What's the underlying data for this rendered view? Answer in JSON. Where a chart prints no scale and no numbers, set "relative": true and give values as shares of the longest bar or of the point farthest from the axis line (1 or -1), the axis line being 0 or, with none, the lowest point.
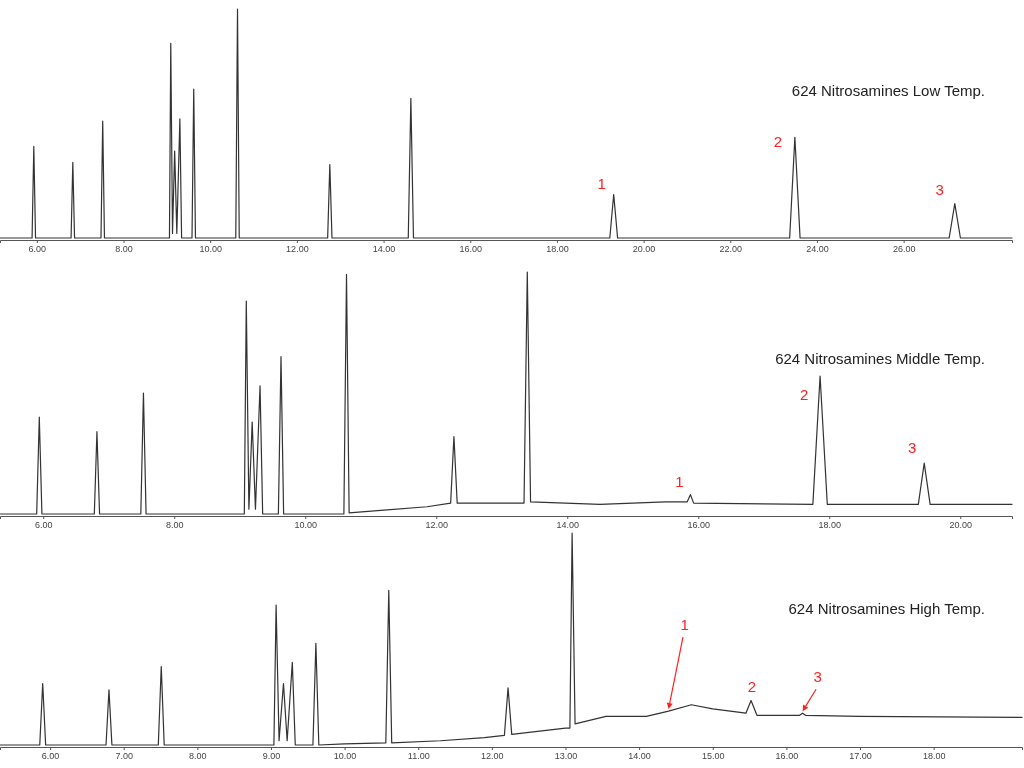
{
  "chart_data": [
    {
      "type": "line",
      "title": "624 Nitrosamines Low Temp.",
      "relative": true,
      "xlim": [
        5.15,
        28.5
      ],
      "xticks": [
        {
          "value": 6,
          "label": "6.00"
        },
        {
          "value": 8,
          "label": "8.00"
        },
        {
          "value": 10,
          "label": "10.00"
        },
        {
          "value": 12,
          "label": "12.00"
        },
        {
          "value": 14,
          "label": "14.00"
        },
        {
          "value": 16,
          "label": "16.00"
        },
        {
          "value": 18,
          "label": "18.00"
        },
        {
          "value": 20,
          "label": "20.00"
        },
        {
          "value": 22,
          "label": "22.00"
        },
        {
          "value": 24,
          "label": "24.00"
        },
        {
          "value": 26,
          "label": "26.00"
        }
      ],
      "series": [
        {
          "color": "#333333",
          "x": [
            5.15,
            5.89,
            5.93,
            5.97,
            6.79,
            6.83,
            6.87,
            7.48,
            7.52,
            7.56,
            9.06,
            9.09,
            9.13,
            9.18,
            9.23,
            9.3,
            9.34,
            9.58,
            9.62,
            9.66,
            10.59,
            10.63,
            10.67,
            12.71,
            12.76,
            12.81,
            14.57,
            14.63,
            14.69,
            19.22,
            19.31,
            19.4,
            23.37,
            23.49,
            23.61,
            27.05,
            27.18,
            27.31,
            28.5
          ],
          "values": [
            0,
            0,
            0.4,
            0,
            0,
            0.33,
            0,
            0,
            0.51,
            0,
            0,
            0.85,
            0.02,
            0.38,
            0.02,
            0.52,
            0,
            0,
            0.65,
            0,
            0,
            1,
            0,
            0,
            0.32,
            0,
            0,
            0.61,
            0,
            0,
            0.19,
            0,
            0,
            0.44,
            0,
            0,
            0.15,
            0,
            0
          ]
        }
      ],
      "annotations": [
        {
          "text": "1",
          "x": 19.31,
          "y": 0.19
        },
        {
          "text": "2",
          "x": 23.49,
          "y": 0.44
        },
        {
          "text": "3",
          "x": 27.18,
          "y": 0.15
        }
      ]
    },
    {
      "type": "line",
      "title": "624 Nitrosamines Middle Temp.",
      "relative": true,
      "xlim": [
        5.34,
        20.79
      ],
      "xticks": [
        {
          "value": 6,
          "label": "6.00"
        },
        {
          "value": 8,
          "label": "8.00"
        },
        {
          "value": 10,
          "label": "10.00"
        },
        {
          "value": 12,
          "label": "12.00"
        },
        {
          "value": 14,
          "label": "14.00"
        },
        {
          "value": 16,
          "label": "16.00"
        },
        {
          "value": 18,
          "label": "18.00"
        },
        {
          "value": 20,
          "label": "20.00"
        }
      ],
      "series": [
        {
          "color": "#333333",
          "x": [
            5.34,
            5.9,
            5.94,
            5.98,
            6.78,
            6.82,
            6.86,
            7.49,
            7.53,
            7.57,
            9.07,
            9.1,
            9.14,
            9.19,
            9.24,
            9.31,
            9.35,
            9.59,
            9.63,
            9.67,
            10.59,
            10.63,
            10.67,
            11.86,
            12.22,
            12.27,
            12.32,
            13.34,
            13.39,
            13.44,
            14.5,
            15.5,
            15.83,
            15.88,
            15.93,
            17.75,
            17.86,
            17.97,
            19.36,
            19.45,
            19.54,
            20.79
          ],
          "values": [
            0,
            0,
            0.4,
            0,
            0,
            0.34,
            0,
            0,
            0.5,
            0,
            0,
            0.88,
            0.02,
            0.38,
            0.02,
            0.53,
            0,
            0,
            0.65,
            0,
            0,
            0.99,
            0.005,
            0.03,
            0.045,
            0.32,
            0.045,
            0.045,
            1,
            0.05,
            0.04,
            0.05,
            0.05,
            0.08,
            0.045,
            0.04,
            0.57,
            0.04,
            0.04,
            0.21,
            0.04,
            0.04
          ]
        }
      ],
      "annotations": [
        {
          "text": "1",
          "x": 15.88,
          "y": 0.08
        },
        {
          "text": "2",
          "x": 17.86,
          "y": 0.57
        },
        {
          "text": "3",
          "x": 19.45,
          "y": 0.21
        }
      ]
    },
    {
      "type": "line",
      "title": "624 Nitrosamines High Temp.",
      "relative": true,
      "xlim": [
        5.32,
        19.2
      ],
      "xticks": [
        {
          "value": 6,
          "label": "6.00"
        },
        {
          "value": 7,
          "label": "7.00"
        },
        {
          "value": 8,
          "label": "8.00"
        },
        {
          "value": 9,
          "label": "9.00"
        },
        {
          "value": 10,
          "label": "10.00"
        },
        {
          "value": 11,
          "label": "11.00"
        },
        {
          "value": 12,
          "label": "12.00"
        },
        {
          "value": 13,
          "label": "13.00"
        },
        {
          "value": 14,
          "label": "14.00"
        },
        {
          "value": 15,
          "label": "15.00"
        },
        {
          "value": 16,
          "label": "16.00"
        },
        {
          "value": 17,
          "label": "17.00"
        },
        {
          "value": 18,
          "label": "18.00"
        }
      ],
      "series": [
        {
          "color": "#333333",
          "x": [
            5.32,
            5.86,
            5.9,
            5.94,
            6.76,
            6.8,
            6.84,
            7.47,
            7.51,
            7.55,
            9.04,
            9.07,
            9.11,
            9.17,
            9.22,
            9.29,
            9.33,
            9.57,
            9.61,
            9.65,
            10.0,
            10.56,
            10.6,
            10.64,
            11.3,
            11.9,
            12.17,
            12.22,
            12.27,
            13.0,
            13.06,
            13.09,
            13.13,
            13.55,
            14.1,
            14.4,
            14.71,
            15.0,
            15.45,
            15.52,
            15.6,
            16.18,
            16.22,
            16.26,
            17.0,
            19.2
          ],
          "values": [
            0,
            0,
            0.29,
            0,
            0,
            0.26,
            0,
            0,
            0.37,
            0,
            0,
            0.66,
            0.02,
            0.29,
            0.02,
            0.39,
            0,
            0,
            0.48,
            0,
            0.005,
            0.01,
            0.73,
            0.01,
            0.02,
            0.035,
            0.045,
            0.27,
            0.05,
            0.08,
            0.08,
            1,
            0.1,
            0.135,
            0.135,
            0.16,
            0.19,
            0.17,
            0.15,
            0.21,
            0.14,
            0.14,
            0.15,
            0.14,
            0.135,
            0.13
          ]
        }
      ],
      "annotations": [
        {
          "text": "1",
          "x": 14.4,
          "y": 0.16
        },
        {
          "text": "2",
          "x": 15.52,
          "y": 0.21
        },
        {
          "text": "3",
          "x": 16.22,
          "y": 0.15
        }
      ]
    }
  ]
}
